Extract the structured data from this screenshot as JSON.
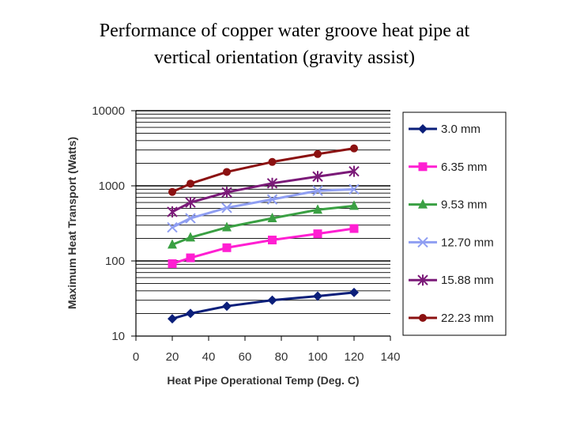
{
  "slide": {
    "title_line1": "Performance of copper water groove heat pipe at",
    "title_line2": "vertical orientation (gravity assist)"
  },
  "chart_data": {
    "type": "line",
    "title": "Performance of copper water groove heat pipe at vertical orientation (gravity assist)",
    "xlabel": "Heat Pipe Operational Temp (Deg. C)",
    "ylabel": "Maximum Heat Transport (Watts)",
    "xlim": [
      0,
      140
    ],
    "ylim": [
      10,
      10000
    ],
    "yscale": "log",
    "x_ticks": [
      0,
      20,
      40,
      60,
      80,
      100,
      120,
      140
    ],
    "y_ticks": [
      10,
      100,
      1000,
      10000
    ],
    "grid": true,
    "legend_position": "right",
    "x": [
      20,
      30,
      50,
      75,
      100,
      120
    ],
    "series": [
      {
        "name": "3.0 mm",
        "color": "#0b1f7a",
        "marker": "diamond",
        "values": [
          17,
          20,
          25,
          30,
          34,
          38
        ]
      },
      {
        "name": "6.35 mm",
        "color": "#ff1fd2",
        "marker": "square",
        "values": [
          92,
          110,
          150,
          190,
          230,
          270
        ]
      },
      {
        "name": "9.53 mm",
        "color": "#3aa043",
        "marker": "triangle",
        "values": [
          165,
          205,
          280,
          370,
          480,
          540
        ]
      },
      {
        "name": "12.70 mm",
        "color": "#8f9ef2",
        "marker": "x",
        "values": [
          280,
          370,
          510,
          660,
          860,
          900
        ]
      },
      {
        "name": "15.88 mm",
        "color": "#7b1a78",
        "marker": "star",
        "values": [
          450,
          600,
          820,
          1080,
          1330,
          1560
        ]
      },
      {
        "name": "22.23 mm",
        "color": "#8b1111",
        "marker": "circle",
        "values": [
          830,
          1070,
          1530,
          2080,
          2650,
          3150
        ]
      }
    ]
  }
}
